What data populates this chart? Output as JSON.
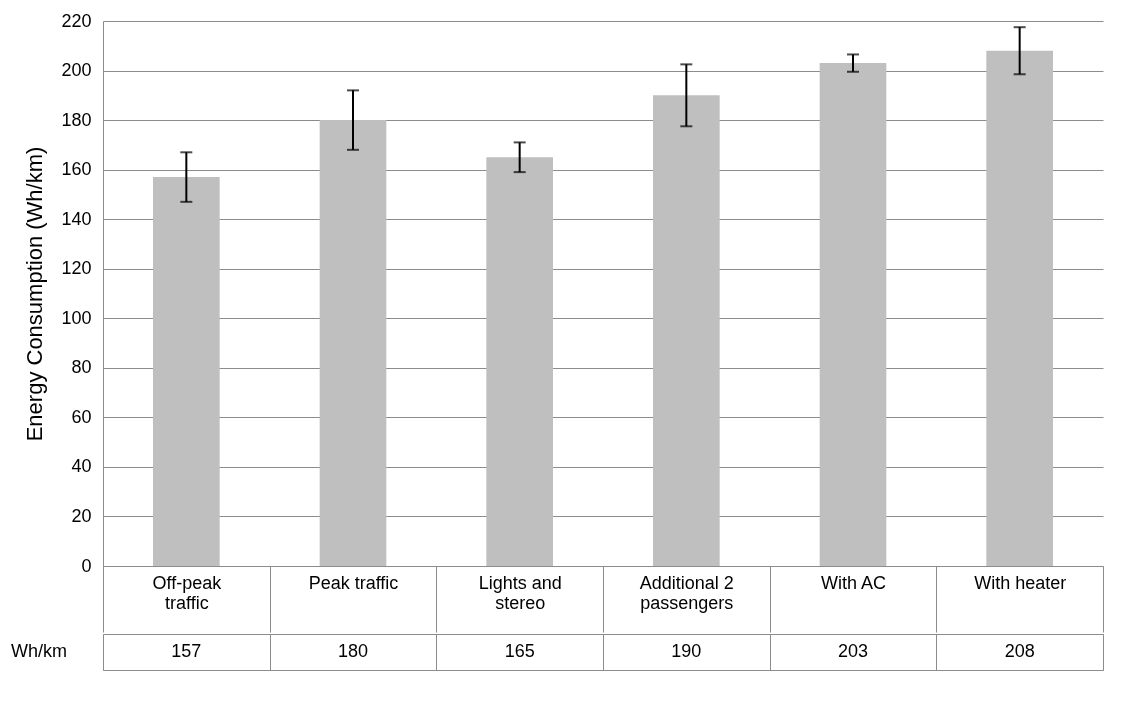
{
  "chart_data": {
    "type": "bar",
    "ylabel": "Energy  Consumption (Wh/km)",
    "categories": [
      "Off-peak traffic",
      "Peak traffic",
      "Lights and stereo",
      "Additional 2 passengers",
      "With AC",
      "With heater"
    ],
    "values": [
      157,
      180,
      165,
      190,
      203,
      208
    ],
    "errors": [
      10,
      12,
      6,
      12.5,
      3.5,
      9.5
    ],
    "color": "#bfbfbf",
    "ylim": [
      0,
      220
    ],
    "yticks": [
      0,
      20,
      40,
      60,
      80,
      100,
      120,
      140,
      160,
      180,
      200,
      220
    ],
    "grid": "y",
    "data_labels": true,
    "annotations": [
      "Wh/km"
    ]
  }
}
